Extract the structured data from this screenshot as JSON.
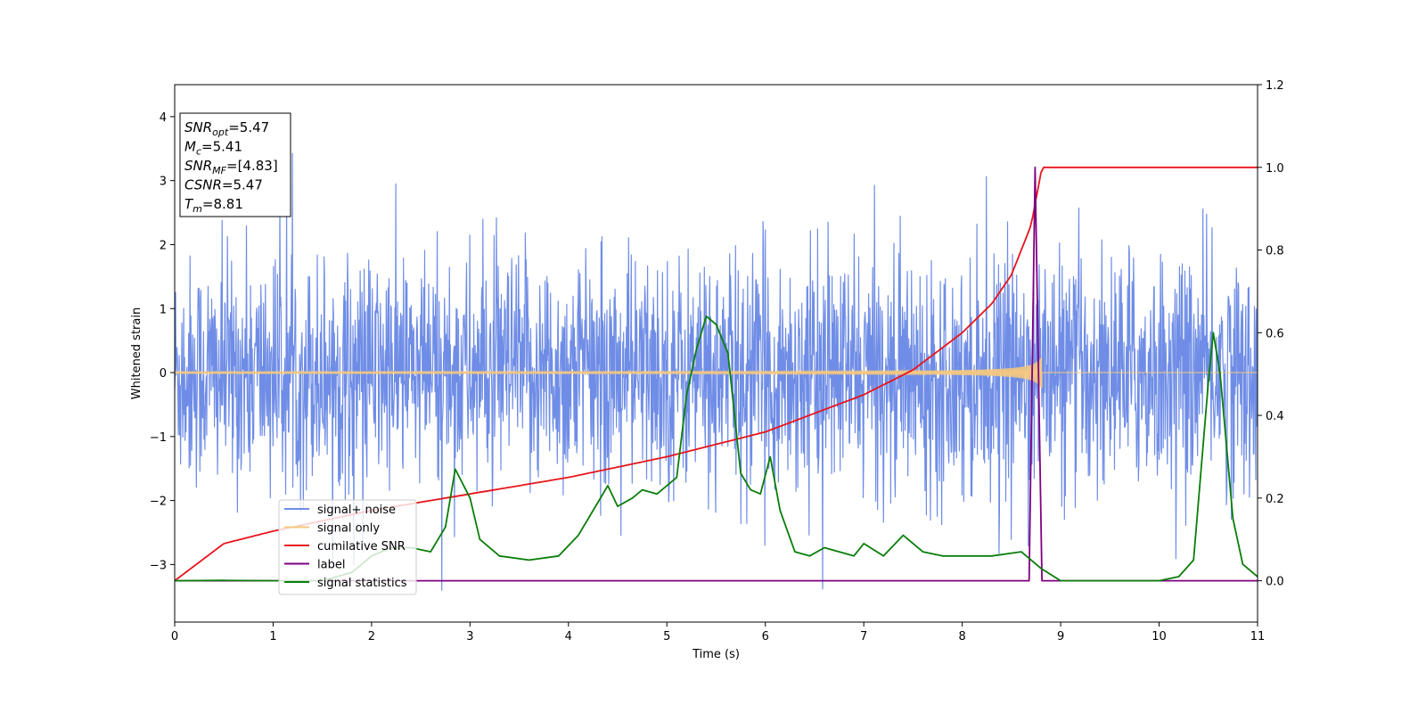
{
  "chart_data": {
    "type": "line",
    "xlabel": "Time (s)",
    "ylabel": "Whitened strain",
    "xlim": [
      0,
      11
    ],
    "ylim_left": [
      -3.9,
      4.5
    ],
    "ylim_right": [
      -0.1,
      1.2
    ],
    "x_ticks": [
      "0",
      "1",
      "2",
      "3",
      "4",
      "5",
      "6",
      "7",
      "8",
      "9",
      "10",
      "11"
    ],
    "y_ticks_left": [
      "−3",
      "−2",
      "−1",
      "0",
      "1",
      "2",
      "3",
      "4"
    ],
    "y_ticks_right": [
      "0.0",
      "0.2",
      "0.4",
      "0.6",
      "0.8",
      "1.0",
      "1.2"
    ],
    "grid": false,
    "legend_position": "lower-left",
    "annotation": {
      "lines": [
        {
          "main": "SNR",
          "sub": "opt",
          "value": "=5.47"
        },
        {
          "main": "M",
          "sub": "c",
          "value": "=5.41"
        },
        {
          "main": "SNR",
          "sub": "MF",
          "value": "=[4.83]"
        },
        {
          "main": "CSNR",
          "sub": "",
          "value": "=5.47"
        },
        {
          "main": "T",
          "sub": "m",
          "value": "=8.81"
        }
      ]
    },
    "series": [
      {
        "name": "signal+ noise",
        "color": "#6f8de6",
        "axis": "left",
        "style": "noise",
        "std": 0.9,
        "range": [
          -3.4,
          4.15
        ]
      },
      {
        "name": "signal only",
        "color": "#f5c880",
        "axis": "left",
        "style": "chirp",
        "merger_time": 8.81,
        "peak_amplitude": 0.55
      },
      {
        "name": "cumilative SNR",
        "color": "#e8141b",
        "axis": "right",
        "x": [
          0,
          0.5,
          1,
          2,
          3,
          4,
          5,
          6,
          7,
          7.5,
          8,
          8.3,
          8.5,
          8.7,
          8.81,
          11
        ],
        "y": [
          0.0,
          0.09,
          0.12,
          0.17,
          0.21,
          0.25,
          0.3,
          0.36,
          0.45,
          0.51,
          0.6,
          0.67,
          0.74,
          0.86,
          1.0,
          1.0
        ]
      },
      {
        "name": "label",
        "color": "#800080",
        "axis": "right",
        "x": [
          0,
          8.68,
          8.74,
          8.81,
          11
        ],
        "y": [
          0.0,
          0.0,
          1.0,
          0.0,
          0.0
        ]
      },
      {
        "name": "signal statistics",
        "color": "#0a7d0a",
        "axis": "right",
        "x": [
          0,
          0.5,
          1,
          1.5,
          1.8,
          2,
          2.2,
          2.4,
          2.6,
          2.75,
          2.85,
          3.0,
          3.1,
          3.3,
          3.6,
          3.9,
          4.1,
          4.3,
          4.4,
          4.5,
          4.65,
          4.75,
          4.9,
          5.1,
          5.2,
          5.3,
          5.4,
          5.5,
          5.62,
          5.75,
          5.85,
          5.95,
          6.05,
          6.15,
          6.3,
          6.45,
          6.6,
          6.9,
          7.0,
          7.2,
          7.4,
          7.6,
          7.8,
          8.05,
          8.3,
          8.6,
          8.8,
          9.0,
          9.5,
          10.0,
          10.2,
          10.35,
          10.5,
          10.55,
          10.62,
          10.75,
          10.85,
          11.0
        ],
        "y": [
          0.0,
          0.001,
          0.0,
          0.0,
          0.02,
          0.06,
          0.08,
          0.08,
          0.07,
          0.13,
          0.27,
          0.2,
          0.1,
          0.06,
          0.05,
          0.06,
          0.11,
          0.19,
          0.23,
          0.18,
          0.2,
          0.22,
          0.21,
          0.25,
          0.45,
          0.56,
          0.64,
          0.62,
          0.55,
          0.26,
          0.22,
          0.21,
          0.3,
          0.17,
          0.07,
          0.06,
          0.08,
          0.06,
          0.09,
          0.06,
          0.11,
          0.07,
          0.06,
          0.06,
          0.06,
          0.07,
          0.03,
          0.0,
          0.0,
          0.0,
          0.01,
          0.05,
          0.48,
          0.6,
          0.5,
          0.15,
          0.04,
          0.01
        ]
      }
    ]
  }
}
